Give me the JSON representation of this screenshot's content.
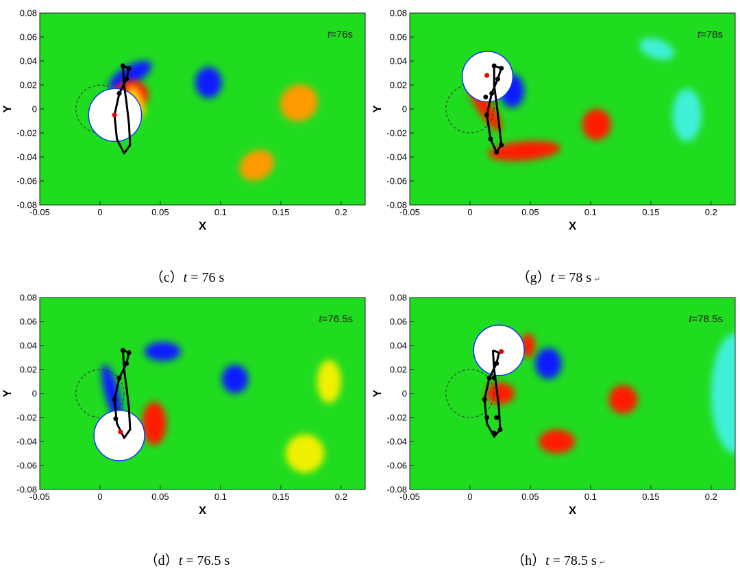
{
  "chart_data": [
    {
      "type": "heatmap",
      "xlabel": "X",
      "ylabel": "Y",
      "xlim": [
        -0.05,
        0.22
      ],
      "ylim": [
        -0.08,
        0.08
      ],
      "xticks": [
        "-0.05",
        "0",
        "0.05",
        "0.1",
        "0.15",
        "0.2"
      ],
      "yticks": [
        "0.08",
        "0.06",
        "0.04",
        "0.02",
        "0",
        "-0.02",
        "-0.04",
        "-0.06",
        "-0.08"
      ],
      "annotation": {
        "t": "t",
        "rest": "=76s"
      },
      "caption": {
        "label": "（c）",
        "var": "t",
        "rest": " = 76 s",
        "return_mark": ""
      },
      "cylinder": {
        "cx": 0.0125,
        "cy": -0.005,
        "r": 0.022
      },
      "reference_circle": {
        "cx": 0.0,
        "cy": 0.0,
        "r": 0.02
      },
      "trajectory": [
        [
          0.019,
          0.036
        ],
        [
          0.024,
          0.034
        ],
        [
          0.022,
          0.025
        ],
        [
          0.016,
          0.013
        ],
        [
          0.012,
          -0.005
        ],
        [
          0.014,
          -0.025
        ],
        [
          0.02,
          -0.037
        ],
        [
          0.025,
          -0.03
        ],
        [
          0.024,
          -0.012
        ],
        [
          0.022,
          0.005
        ],
        [
          0.02,
          0.02
        ],
        [
          0.019,
          0.036
        ]
      ],
      "markers": [
        [
          0.019,
          0.036
        ],
        [
          0.024,
          0.034
        ],
        [
          0.022,
          0.025
        ],
        [
          0.016,
          0.013
        ]
      ],
      "red_marker": [
        0.012,
        -0.005
      ],
      "blobs": [
        {
          "x": 0.025,
          "y": 0.028,
          "rx": 0.02,
          "ry": 0.008,
          "rot": -30,
          "color": "#0a1eff"
        },
        {
          "x": 0.09,
          "y": 0.022,
          "rx": 0.011,
          "ry": 0.013,
          "rot": 0,
          "color": "#0a1eff"
        },
        {
          "x": 0.026,
          "y": 0.012,
          "rx": 0.014,
          "ry": 0.012,
          "rot": 0,
          "color": "#ff1a00"
        },
        {
          "x": 0.03,
          "y": 0.006,
          "rx": 0.006,
          "ry": 0.014,
          "rot": -20,
          "color": "#ffd000"
        },
        {
          "x": 0.165,
          "y": 0.005,
          "rx": 0.016,
          "ry": 0.015,
          "rot": -35,
          "color": "#ff9a00"
        },
        {
          "x": 0.13,
          "y": -0.047,
          "rx": 0.015,
          "ry": 0.012,
          "rot": -30,
          "color": "#ff9a00"
        }
      ]
    },
    {
      "type": "heatmap",
      "xlabel": "X",
      "ylabel": "Y",
      "xlim": [
        -0.05,
        0.22
      ],
      "ylim": [
        -0.08,
        0.08
      ],
      "xticks": [
        "-0.05",
        "0",
        "0.05",
        "0.1",
        "0.15",
        "0.2"
      ],
      "yticks": [
        "0.08",
        "0.06",
        "0.04",
        "0.02",
        "0",
        "-0.02",
        "-0.04",
        "-0.06",
        "-0.08"
      ],
      "annotation": {
        "t": "t",
        "rest": "=78s"
      },
      "caption": {
        "label": "（g）",
        "var": "t",
        "rest": " = 78 s",
        "return_mark": "↵"
      },
      "cylinder": {
        "cx": 0.0145,
        "cy": 0.027,
        "r": 0.021
      },
      "reference_circle": {
        "cx": 0.0,
        "cy": 0.0,
        "r": 0.02
      },
      "trajectory": [
        [
          0.02,
          0.036
        ],
        [
          0.026,
          0.034
        ],
        [
          0.023,
          0.025
        ],
        [
          0.018,
          0.013
        ],
        [
          0.014,
          -0.005
        ],
        [
          0.017,
          -0.025
        ],
        [
          0.022,
          -0.036
        ],
        [
          0.026,
          -0.03
        ],
        [
          0.024,
          -0.012
        ],
        [
          0.022,
          0.005
        ],
        [
          0.02,
          0.02
        ],
        [
          0.02,
          0.036
        ]
      ],
      "markers": [
        [
          0.02,
          0.036
        ],
        [
          0.026,
          0.034
        ],
        [
          0.023,
          0.025
        ],
        [
          0.018,
          0.013
        ],
        [
          0.013,
          0.01
        ],
        [
          0.014,
          -0.005
        ],
        [
          0.017,
          -0.025
        ],
        [
          0.022,
          -0.036
        ],
        [
          0.026,
          -0.03
        ]
      ],
      "red_marker": [
        0.014,
        0.028
      ],
      "blobs": [
        {
          "x": 0.045,
          "y": -0.035,
          "rx": 0.03,
          "ry": 0.008,
          "rot": -5,
          "color": "#ff1a00"
        },
        {
          "x": 0.105,
          "y": -0.013,
          "rx": 0.012,
          "ry": 0.013,
          "rot": 0,
          "color": "#ff1a00"
        },
        {
          "x": 0.035,
          "y": 0.015,
          "rx": 0.01,
          "ry": 0.014,
          "rot": 0,
          "color": "#0a1eff"
        },
        {
          "x": 0.013,
          "y": 0.0,
          "rx": 0.006,
          "ry": 0.022,
          "rot": -35,
          "color": "#ff1a00"
        },
        {
          "x": 0.155,
          "y": 0.05,
          "rx": 0.015,
          "ry": 0.008,
          "rot": 20,
          "color": "#3ff0d8"
        },
        {
          "x": 0.18,
          "y": -0.005,
          "rx": 0.012,
          "ry": 0.022,
          "rot": 0,
          "color": "#3ff0d8"
        }
      ]
    },
    {
      "type": "heatmap",
      "xlabel": "X",
      "ylabel": "Y",
      "xlim": [
        -0.05,
        0.22
      ],
      "ylim": [
        -0.08,
        0.08
      ],
      "xticks": [
        "-0.05",
        "0",
        "0.05",
        "0.1",
        "0.15",
        "0.2"
      ],
      "yticks": [
        "0.08",
        "0.06",
        "0.04",
        "0.02",
        "0",
        "-0.02",
        "-0.04",
        "-0.06",
        "-0.08"
      ],
      "annotation": {
        "t": "t",
        "rest": "=76.5s"
      },
      "caption": {
        "label": "（d）",
        "var": "t",
        "rest": " = 76.5 s",
        "return_mark": ""
      },
      "cylinder": {
        "cx": 0.016,
        "cy": -0.035,
        "r": 0.021
      },
      "reference_circle": {
        "cx": 0.0,
        "cy": 0.0,
        "r": 0.02
      },
      "trajectory": [
        [
          0.019,
          0.036
        ],
        [
          0.024,
          0.034
        ],
        [
          0.022,
          0.025
        ],
        [
          0.016,
          0.013
        ],
        [
          0.012,
          -0.005
        ],
        [
          0.014,
          -0.025
        ],
        [
          0.02,
          -0.037
        ],
        [
          0.025,
          -0.03
        ],
        [
          0.024,
          -0.012
        ],
        [
          0.022,
          0.005
        ],
        [
          0.02,
          0.02
        ],
        [
          0.019,
          0.036
        ]
      ],
      "markers": [
        [
          0.019,
          0.036
        ],
        [
          0.024,
          0.034
        ],
        [
          0.022,
          0.025
        ],
        [
          0.016,
          0.013
        ],
        [
          0.012,
          -0.005
        ],
        [
          0.013,
          -0.021
        ]
      ],
      "red_marker": [
        0.017,
        -0.032
      ],
      "blobs": [
        {
          "x": 0.052,
          "y": 0.035,
          "rx": 0.015,
          "ry": 0.008,
          "rot": 0,
          "color": "#0a1eff"
        },
        {
          "x": 0.112,
          "y": 0.012,
          "rx": 0.011,
          "ry": 0.012,
          "rot": 0,
          "color": "#0a1eff"
        },
        {
          "x": 0.01,
          "y": 0.0,
          "rx": 0.006,
          "ry": 0.025,
          "rot": -15,
          "color": "#0a1eff"
        },
        {
          "x": 0.045,
          "y": -0.025,
          "rx": 0.01,
          "ry": 0.018,
          "rot": 0,
          "color": "#ff1a00"
        },
        {
          "x": 0.19,
          "y": 0.01,
          "rx": 0.01,
          "ry": 0.018,
          "rot": 0,
          "color": "#f0f000"
        },
        {
          "x": 0.17,
          "y": -0.05,
          "rx": 0.016,
          "ry": 0.016,
          "rot": 0,
          "color": "#f0f000"
        }
      ]
    },
    {
      "type": "heatmap",
      "xlabel": "X",
      "ylabel": "Y",
      "xlim": [
        -0.05,
        0.22
      ],
      "ylim": [
        -0.08,
        0.08
      ],
      "xticks": [
        "-0.05",
        "0",
        "0.05",
        "0.1",
        "0.15",
        "0.2"
      ],
      "yticks": [
        "0.08",
        "0.06",
        "0.04",
        "0.02",
        "0",
        "-0.02",
        "-0.04",
        "-0.06",
        "-0.08"
      ],
      "annotation": {
        "t": "t",
        "rest": "=78.5s"
      },
      "caption": {
        "label": "（h）",
        "var": "t",
        "rest": " = 78.5 s",
        "return_mark": "↵"
      },
      "cylinder": {
        "cx": 0.024,
        "cy": 0.036,
        "r": 0.021
      },
      "reference_circle": {
        "cx": 0.0,
        "cy": 0.0,
        "r": 0.02
      },
      "trajectory": [
        [
          0.019,
          0.036
        ],
        [
          0.024,
          0.034
        ],
        [
          0.022,
          0.025
        ],
        [
          0.016,
          0.013
        ],
        [
          0.012,
          -0.005
        ],
        [
          0.014,
          -0.025
        ],
        [
          0.02,
          -0.036
        ],
        [
          0.025,
          -0.03
        ],
        [
          0.024,
          -0.012
        ],
        [
          0.022,
          0.005
        ],
        [
          0.02,
          0.02
        ],
        [
          0.019,
          0.036
        ]
      ],
      "markers": [
        [
          0.022,
          0.025
        ],
        [
          0.016,
          0.013
        ],
        [
          0.02,
          0.013
        ],
        [
          0.012,
          -0.005
        ],
        [
          0.014,
          -0.02
        ],
        [
          0.022,
          -0.02
        ],
        [
          0.02,
          -0.033
        ],
        [
          0.025,
          -0.03
        ]
      ],
      "red_marker": [
        0.026,
        0.035
      ],
      "blobs": [
        {
          "x": 0.065,
          "y": 0.025,
          "rx": 0.011,
          "ry": 0.013,
          "rot": 0,
          "color": "#0a1eff"
        },
        {
          "x": 0.048,
          "y": 0.04,
          "rx": 0.006,
          "ry": 0.01,
          "rot": 0,
          "color": "#ff1a00"
        },
        {
          "x": 0.025,
          "y": 0.0,
          "rx": 0.012,
          "ry": 0.009,
          "rot": 0,
          "color": "#ff1a00"
        },
        {
          "x": 0.127,
          "y": -0.005,
          "rx": 0.012,
          "ry": 0.012,
          "rot": 0,
          "color": "#ff1a00"
        },
        {
          "x": 0.072,
          "y": -0.04,
          "rx": 0.015,
          "ry": 0.01,
          "rot": 0,
          "color": "#ff1a00"
        },
        {
          "x": 0.22,
          "y": 0.0,
          "rx": 0.02,
          "ry": 0.05,
          "rot": 0,
          "color": "#3ff0d8"
        }
      ]
    }
  ]
}
